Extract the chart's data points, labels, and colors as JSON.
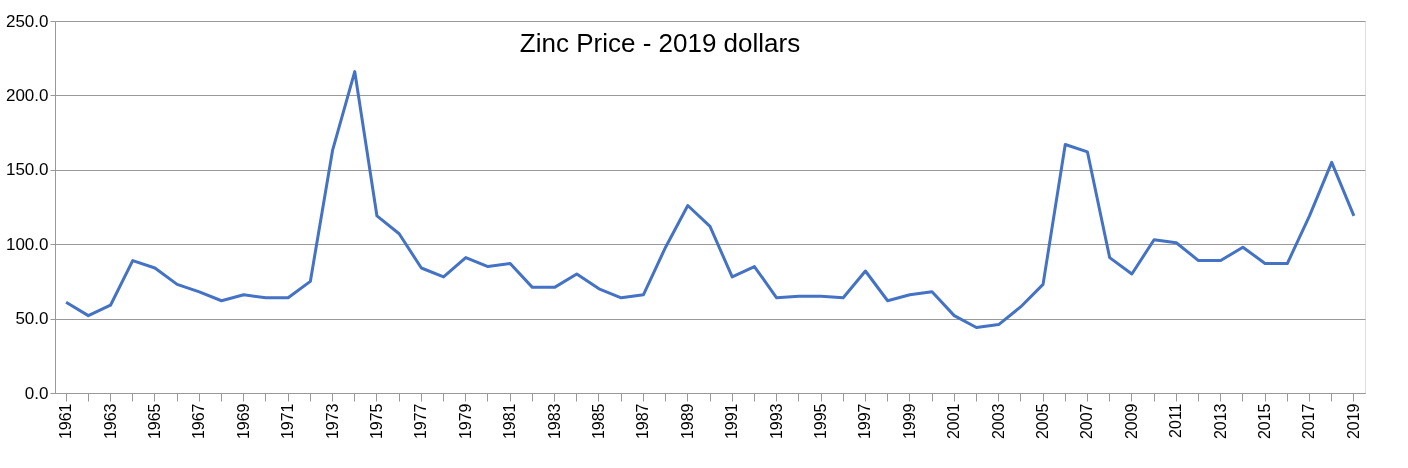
{
  "chart_data": {
    "type": "line",
    "title": "Zinc Price  - 2019 dollars",
    "categories": [
      "1961",
      null,
      "1963",
      null,
      "1965",
      null,
      "1967",
      null,
      "1969",
      null,
      "1971",
      null,
      "1973",
      null,
      "1975",
      null,
      "1977",
      null,
      "1979",
      null,
      "1981",
      null,
      "1983",
      null,
      "1985",
      null,
      "1987",
      null,
      "1989",
      null,
      "1991",
      null,
      "1993",
      null,
      "1995",
      null,
      "1997",
      null,
      "1999",
      null,
      "2001",
      null,
      "2003",
      null,
      "2005",
      null,
      "2007",
      null,
      "2009",
      null,
      "2011",
      null,
      "2013",
      null,
      "2015",
      null,
      "2017",
      null,
      "2019"
    ],
    "series": [
      {
        "color": "#4472c4",
        "values": [
          61,
          52,
          59,
          89,
          84,
          73,
          68,
          62,
          66,
          64,
          64,
          75,
          163,
          216,
          119,
          107,
          84,
          78,
          91,
          85,
          87,
          71,
          71,
          80,
          70,
          64,
          66,
          98,
          126,
          112,
          78,
          85,
          64,
          65,
          65,
          64,
          82,
          62,
          66,
          68,
          52,
          44,
          46,
          58,
          73,
          167,
          162,
          91,
          80,
          103,
          101,
          89,
          89,
          98,
          87,
          87,
          119,
          155,
          119
        ]
      }
    ],
    "ylim": [
      0,
      250
    ],
    "yticks": [
      {
        "value": 0,
        "label": "0.0"
      },
      {
        "value": 50,
        "label": "50.0"
      },
      {
        "value": 100,
        "label": "100.0"
      },
      {
        "value": 150,
        "label": "150.0"
      },
      {
        "value": 200,
        "label": "200.0"
      },
      {
        "value": 250,
        "label": "250.0"
      }
    ],
    "grid": "y",
    "legend": false,
    "marker": "none",
    "line_style": "solid"
  }
}
